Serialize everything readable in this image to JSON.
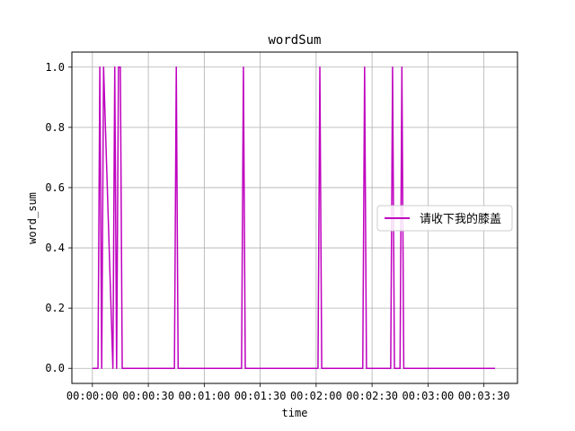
{
  "chart_data": {
    "type": "line",
    "title": "wordSum",
    "xlabel": "time",
    "ylabel": "word_sum",
    "grid": true,
    "legend_position": "center-right",
    "x_unit": "seconds",
    "xlim": [
      -11,
      228
    ],
    "ylim": [
      -0.05,
      1.05
    ],
    "x_ticks": [
      0,
      30,
      60,
      90,
      120,
      150,
      180,
      210
    ],
    "x_tick_labels": [
      "00:00:00",
      "00:00:30",
      "00:01:00",
      "00:01:30",
      "00:02:00",
      "00:02:30",
      "00:03:00",
      "00:03:30"
    ],
    "y_ticks": [
      0,
      0.2,
      0.4,
      0.6,
      0.8,
      1.0
    ],
    "y_tick_labels": [
      "0.0",
      "0.2",
      "0.4",
      "0.6",
      "0.8",
      "1.0"
    ],
    "series": [
      {
        "name": "请收下我的膝盖",
        "color": "#bf00bf",
        "x": [
          0,
          3,
          4,
          5,
          6,
          11,
          12,
          13,
          14,
          15,
          16,
          44,
          45,
          46,
          80,
          81,
          82,
          121,
          122,
          123,
          145,
          146,
          147,
          160,
          161,
          162,
          165,
          166,
          167,
          216
        ],
        "y": [
          0,
          0,
          1,
          0,
          1,
          0,
          1,
          0,
          1,
          1,
          0,
          0,
          1,
          0,
          0,
          1,
          0,
          0,
          1,
          0,
          0,
          1,
          0,
          0,
          1,
          0,
          0,
          1,
          0,
          0
        ]
      }
    ]
  }
}
